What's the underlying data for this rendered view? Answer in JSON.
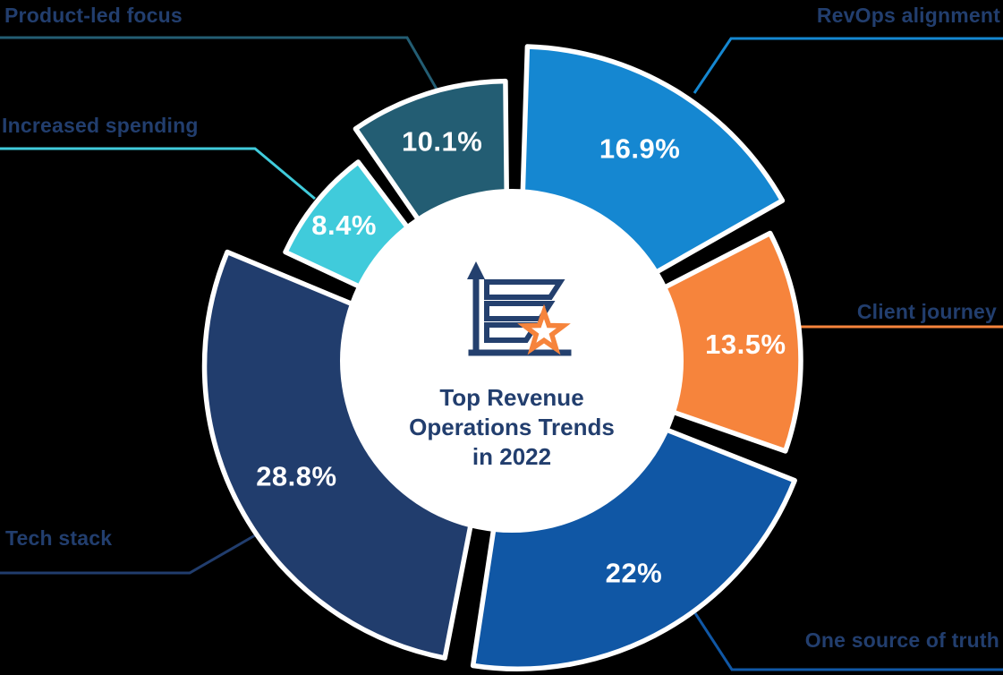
{
  "theme": {
    "background": "#000000",
    "text_navy": "#223e6e",
    "icon_navy": "#24406e",
    "accent_orange": "#f6843c",
    "slice_outline": "#ffffff",
    "value_text": "#ffffff"
  },
  "center": {
    "icon": "bar-chart-with-star",
    "title": "Top Revenue Operations Trends in 2022",
    "title_lines": [
      "Top Revenue",
      "Operations Trends",
      "in 2022"
    ]
  },
  "chart_data": {
    "type": "pie",
    "subtype": "exploded-donut",
    "title": "Top Revenue Operations Trends in 2022",
    "unit": "%",
    "legend_position": "outside-callout-labels",
    "clockwise": true,
    "start_angle_deg": 0.6,
    "categories": [
      "RevOps alignment",
      "Client journey",
      "One source of truth",
      "Tech stack",
      "Increased spending",
      "Product-led focus"
    ],
    "values": [
      16.9,
      13.5,
      22,
      28.8,
      8.4,
      10.1
    ],
    "slices": [
      {
        "label": "RevOps alignment",
        "value": 16.9,
        "display": "16.9%",
        "color": "#1587d1"
      },
      {
        "label": "Client journey",
        "value": 13.5,
        "display": "13.5%",
        "color": "#f6843c"
      },
      {
        "label": "One source of truth",
        "value": 22,
        "display": "22%",
        "color": "#1057a5"
      },
      {
        "label": "Tech stack",
        "value": 28.8,
        "display": "28.8%",
        "color": "#213d6d"
      },
      {
        "label": "Increased spending",
        "value": 8.4,
        "display": "8.4%",
        "color": "#40cbdb"
      },
      {
        "label": "Product-led focus",
        "value": 10.1,
        "display": "10.1%",
        "color": "#235d73"
      }
    ]
  }
}
